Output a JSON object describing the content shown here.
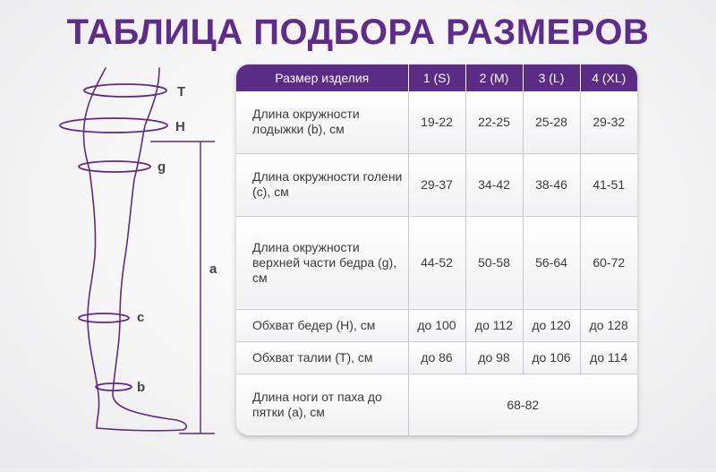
{
  "title": "ТАБЛИЦА ПОДБОРА РАЗМЕРОВ",
  "figure_labels": {
    "T": "T",
    "H": "H",
    "g": "g",
    "a": "a",
    "c": "c",
    "b": "b"
  },
  "table": {
    "header": [
      "Размер изделия",
      "1 (S)",
      "2 (M)",
      "3 (L)",
      "4 (XL)"
    ],
    "rows": [
      {
        "name": "Длина окружности лодыжки (b), см",
        "values": [
          "19-22",
          "22-25",
          "25-28",
          "29-32"
        ]
      },
      {
        "name": "Длина окружности голени (c), см",
        "values": [
          "29-37",
          "34-42",
          "38-46",
          "41-51"
        ]
      },
      {
        "name": "Длина окружности верхней части бедра (g), см",
        "values": [
          "44-52",
          "50-58",
          "56-64",
          "60-72"
        ]
      },
      {
        "name": "Обхват бедер (H), см",
        "values": [
          "до 100",
          "до 112",
          "до 120",
          "до 128"
        ]
      },
      {
        "name": "Обхват талии (T), см",
        "values": [
          "до 86",
          "до 98",
          "до 106",
          "до 114"
        ]
      },
      {
        "name": "Длина ноги от паха до пятки (a), см",
        "span_value": "68-82"
      }
    ]
  },
  "colors": {
    "accent": "#5e2d8c",
    "header_bg": "#5b2c86"
  }
}
